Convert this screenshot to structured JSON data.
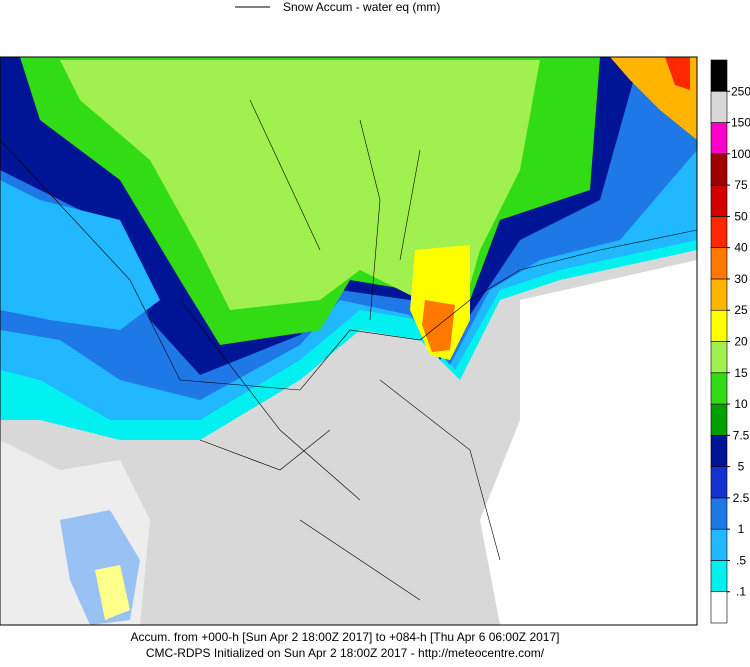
{
  "legend": {
    "label": "Snow Accum - water eq (mm)"
  },
  "colorbar": {
    "levels": [
      {
        "value": 0.1,
        "label": ".1"
      },
      {
        "value": 0.5,
        "label": ".5"
      },
      1,
      2.5,
      5,
      7.5,
      10,
      15,
      20,
      25,
      30,
      40,
      50,
      75,
      100,
      150,
      250
    ],
    "colors": [
      "#ffffff",
      "#00f0f0",
      "#22b8ff",
      "#1e78e6",
      "#1432d2",
      "#001496",
      "#00a000",
      "#32dc14",
      "#a0f050",
      "#ffff00",
      "#ffb400",
      "#ff7800",
      "#ff2800",
      "#d20000",
      "#a00000",
      "#ff00c8",
      "#d8d8d8",
      "#000000"
    ]
  },
  "footer": {
    "line1": "Accum. from +000-h [Sun Apr 2 18:00Z 2017] to +084-h [Thu Apr 6 06:00Z 2017]",
    "line2": "CMC-RDPS Initialized on Sun Apr 2 18:00Z 2017 - http://meteocentre.com/"
  }
}
